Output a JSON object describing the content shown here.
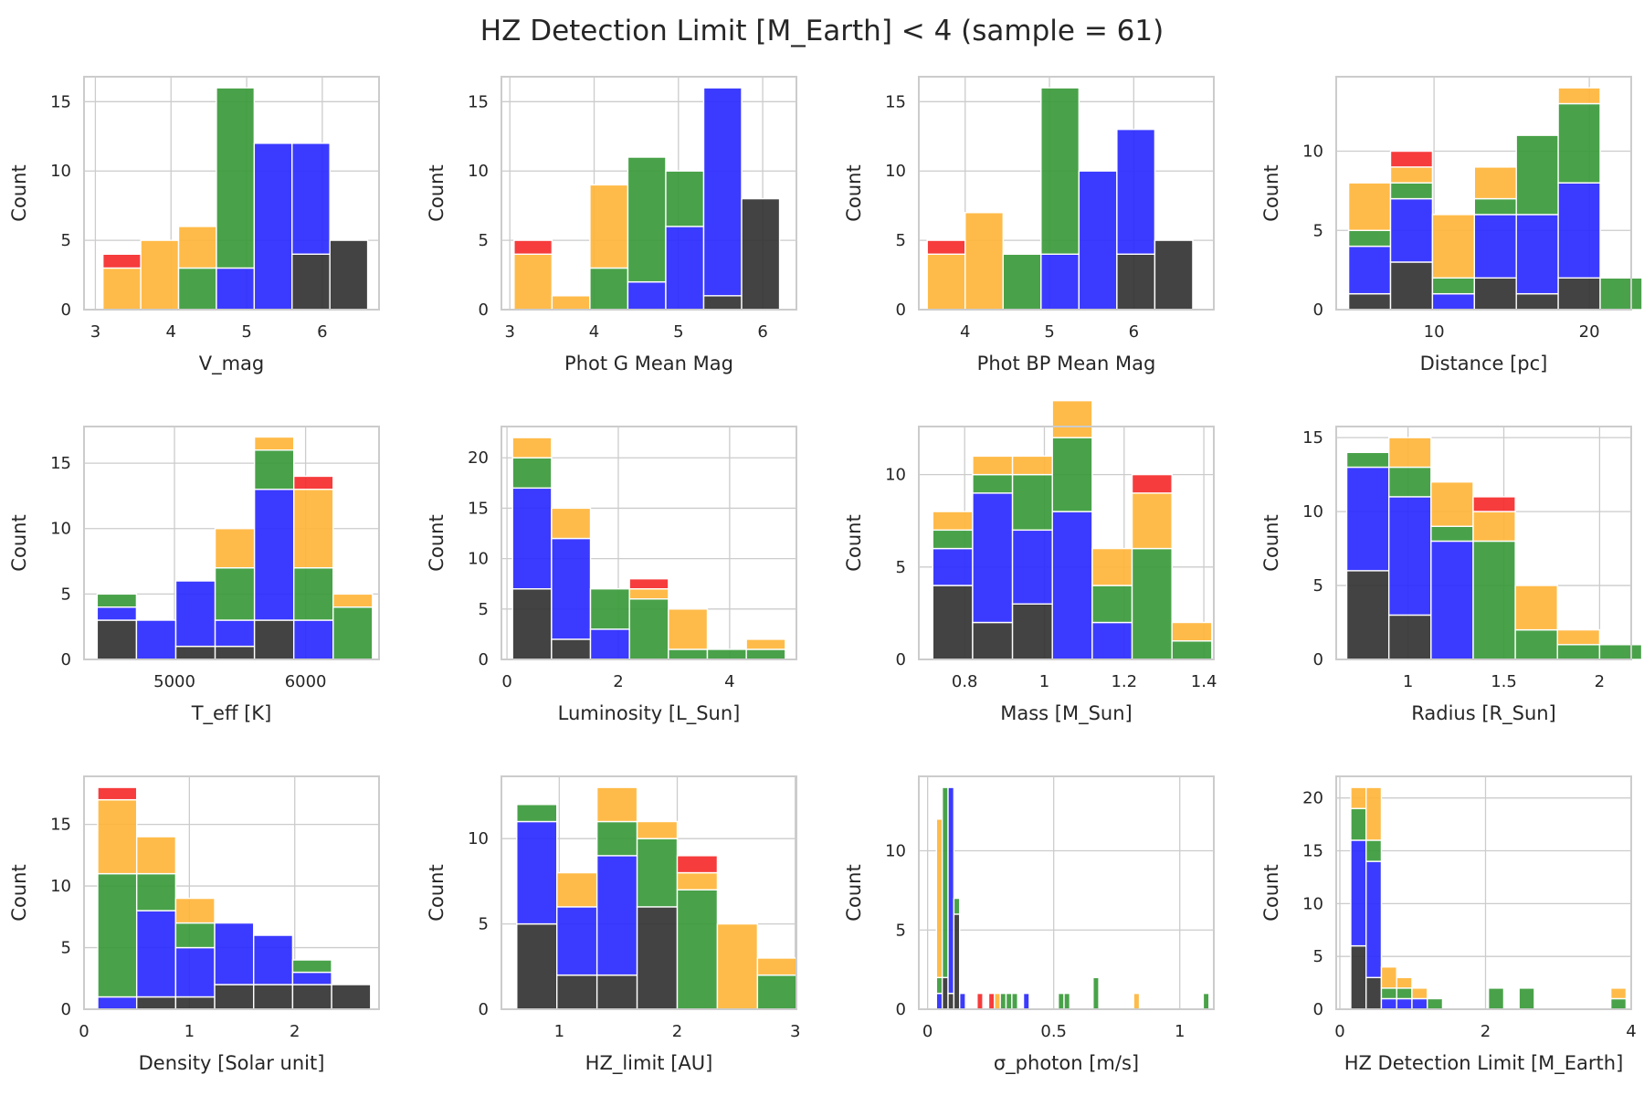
{
  "figure_title": "HZ Detection Limit [M_Earth] < 4 (sample = 61)",
  "colors": {
    "red": "#f52b2b",
    "orange": "#ffb53a",
    "green": "#3a9a3a",
    "blue": "#2a2aff",
    "black": "#333333",
    "grid": "#cccccc",
    "frame": "#cccccc"
  },
  "chart_data": [
    {
      "type": "bar",
      "xlabel": "V_mag",
      "ylabel": "Count",
      "xlim": [
        2.85,
        6.75
      ],
      "ylim": [
        0,
        16.8
      ],
      "xticks": [
        3,
        4,
        5,
        6
      ],
      "yticks": [
        0,
        5,
        10,
        15
      ],
      "bins": [
        3.1,
        3.6,
        4.1,
        4.6,
        5.1,
        5.6,
        6.1,
        6.6
      ],
      "stacks": [
        [
          1,
          3,
          0,
          0,
          0
        ],
        [
          0,
          5,
          0,
          0,
          0
        ],
        [
          0,
          3,
          3,
          0,
          0
        ],
        [
          0,
          0,
          13,
          3,
          0
        ],
        [
          0,
          0,
          0,
          12,
          0
        ],
        [
          0,
          0,
          0,
          8,
          4
        ],
        [
          0,
          0,
          0,
          0,
          5
        ]
      ]
    },
    {
      "type": "bar",
      "xlabel": "Phot G Mean Mag",
      "ylabel": "Count",
      "xlim": [
        2.9,
        6.4
      ],
      "ylim": [
        0,
        16.8
      ],
      "xticks": [
        3,
        4,
        5,
        6
      ],
      "yticks": [
        0,
        5,
        10,
        15
      ],
      "bins": [
        3.05,
        3.5,
        3.95,
        4.4,
        4.85,
        5.3,
        5.75,
        6.2
      ],
      "stacks": [
        [
          1,
          4,
          0,
          0,
          0
        ],
        [
          0,
          1,
          0,
          0,
          0
        ],
        [
          0,
          6,
          3,
          0,
          0
        ],
        [
          0,
          0,
          9,
          2,
          0
        ],
        [
          0,
          0,
          4,
          6,
          0
        ],
        [
          0,
          0,
          0,
          15,
          1
        ],
        [
          0,
          0,
          0,
          0,
          8
        ]
      ]
    },
    {
      "type": "bar",
      "xlabel": "Phot BP Mean Mag",
      "ylabel": "Count",
      "xlim": [
        3.45,
        6.95
      ],
      "ylim": [
        0,
        16.8
      ],
      "xticks": [
        4,
        5,
        6
      ],
      "yticks": [
        0,
        5,
        10,
        15
      ],
      "bins": [
        3.55,
        4.0,
        4.45,
        4.9,
        5.35,
        5.8,
        6.25,
        6.7
      ],
      "stacks": [
        [
          1,
          4,
          0,
          0,
          0
        ],
        [
          0,
          7,
          0,
          0,
          0
        ],
        [
          0,
          0,
          4,
          0,
          0
        ],
        [
          0,
          0,
          12,
          4,
          0
        ],
        [
          0,
          0,
          0,
          10,
          0
        ],
        [
          0,
          0,
          0,
          9,
          4
        ],
        [
          0,
          0,
          0,
          0,
          5
        ]
      ]
    },
    {
      "type": "bar",
      "xlabel": "Distance [pc]",
      "ylabel": "Count",
      "xlim": [
        3.7,
        22.7
      ],
      "ylim": [
        0,
        14.7
      ],
      "xticks": [
        10,
        20
      ],
      "yticks": [
        0,
        5,
        10
      ],
      "bins": [
        4.5,
        7.2,
        9.9,
        12.6,
        15.3,
        18.0,
        20.7,
        23.4
      ],
      "stacks": [
        [
          0,
          3,
          1,
          3,
          1
        ],
        [
          1,
          1,
          1,
          4,
          3
        ],
        [
          0,
          4,
          1,
          1,
          0
        ],
        [
          0,
          2,
          1,
          4,
          2
        ],
        [
          0,
          0,
          5,
          5,
          1
        ],
        [
          0,
          1,
          5,
          6,
          2
        ],
        [
          0,
          0,
          2,
          0,
          0
        ]
      ]
    },
    {
      "type": "bar",
      "xlabel": "T_eff [K]",
      "ylabel": "Count",
      "xlim": [
        4310,
        6560
      ],
      "ylim": [
        0,
        17.8
      ],
      "xticks": [
        5000,
        6000
      ],
      "yticks": [
        0,
        5,
        10,
        15
      ],
      "bins": [
        4410,
        4710,
        5010,
        5310,
        5610,
        5910,
        6210,
        6510
      ],
      "stacks": [
        [
          0,
          0,
          1,
          1,
          3
        ],
        [
          0,
          0,
          0,
          3,
          0
        ],
        [
          0,
          0,
          0,
          5,
          1
        ],
        [
          0,
          3,
          4,
          2,
          1
        ],
        [
          0,
          1,
          3,
          10,
          3
        ],
        [
          1,
          6,
          4,
          3,
          0
        ],
        [
          0,
          1,
          4,
          0,
          0
        ]
      ]
    },
    {
      "type": "bar",
      "xlabel": "Luminosity [L_Sun]",
      "ylabel": "Count",
      "xlim": [
        -0.1,
        5.2
      ],
      "ylim": [
        0,
        23.1
      ],
      "xticks": [
        0,
        2,
        4
      ],
      "yticks": [
        0,
        5,
        10,
        15,
        20
      ],
      "bins": [
        0.1,
        0.8,
        1.5,
        2.2,
        2.9,
        3.6,
        4.3,
        5.0
      ],
      "stacks": [
        [
          0,
          2,
          3,
          10,
          7
        ],
        [
          0,
          3,
          0,
          10,
          2
        ],
        [
          0,
          0,
          4,
          3,
          0
        ],
        [
          1,
          1,
          6,
          0,
          0
        ],
        [
          0,
          4,
          1,
          0,
          0
        ],
        [
          0,
          0,
          1,
          0,
          0
        ],
        [
          0,
          1,
          1,
          0,
          0
        ]
      ]
    },
    {
      "type": "bar",
      "xlabel": "Mass [M_Sun]",
      "ylabel": "Count",
      "xlim": [
        0.685,
        1.425
      ],
      "ylim": [
        0,
        12.6
      ],
      "xticks": [
        0.8,
        1.0,
        1.2,
        1.4
      ],
      "yticks": [
        0,
        5,
        10
      ],
      "bins": [
        0.72,
        0.82,
        0.92,
        1.02,
        1.12,
        1.22,
        1.32,
        1.42
      ],
      "stacks": [
        [
          0,
          1,
          1,
          2,
          4
        ],
        [
          0,
          1,
          1,
          7,
          2
        ],
        [
          0,
          1,
          3,
          4,
          3
        ],
        [
          0,
          2,
          4,
          8,
          0
        ],
        [
          0,
          2,
          2,
          2,
          0
        ],
        [
          1,
          3,
          6,
          0,
          0
        ],
        [
          0,
          1,
          1,
          0,
          0
        ]
      ]
    },
    {
      "type": "bar",
      "xlabel": "Radius [R_Sun]",
      "ylabel": "Count",
      "xlim": [
        0.625,
        2.165
      ],
      "ylim": [
        0,
        15.75
      ],
      "xticks": [
        1.0,
        1.5,
        2.0
      ],
      "yticks": [
        0,
        5,
        10,
        15
      ],
      "bins": [
        0.68,
        0.9,
        1.12,
        1.34,
        1.56,
        1.78,
        2.0,
        2.22
      ],
      "stacks": [
        [
          0,
          0,
          1,
          7,
          6
        ],
        [
          0,
          2,
          2,
          8,
          3
        ],
        [
          0,
          3,
          1,
          8,
          0
        ],
        [
          1,
          2,
          8,
          0,
          0
        ],
        [
          0,
          3,
          2,
          0,
          0
        ],
        [
          0,
          1,
          1,
          0,
          0
        ],
        [
          0,
          0,
          1,
          0,
          0
        ]
      ]
    },
    {
      "type": "bar",
      "xlabel": "Density [Solar unit]",
      "ylabel": "Count",
      "xlim": [
        0.0,
        2.8
      ],
      "ylim": [
        0,
        18.9
      ],
      "xticks": [
        0,
        1,
        2
      ],
      "yticks": [
        0,
        5,
        10,
        15
      ],
      "bins": [
        0.13,
        0.5,
        0.87,
        1.24,
        1.61,
        1.98,
        2.35,
        2.72
      ],
      "stacks": [
        [
          1,
          6,
          10,
          1,
          0
        ],
        [
          0,
          3,
          3,
          7,
          1
        ],
        [
          0,
          2,
          2,
          4,
          1
        ],
        [
          0,
          0,
          0,
          5,
          2
        ],
        [
          0,
          0,
          0,
          4,
          2
        ],
        [
          0,
          0,
          1,
          1,
          2
        ],
        [
          0,
          0,
          0,
          0,
          2
        ]
      ]
    },
    {
      "type": "bar",
      "xlabel": "HZ_limit [AU]",
      "ylabel": "Count",
      "xlim": [
        0.51,
        3.01
      ],
      "ylim": [
        0,
        13.65
      ],
      "xticks": [
        1,
        2,
        3
      ],
      "yticks": [
        0,
        5,
        10
      ],
      "bins": [
        0.64,
        0.98,
        1.32,
        1.66,
        2.0,
        2.34,
        2.68,
        3.02
      ],
      "stacks": [
        [
          0,
          0,
          1,
          6,
          5
        ],
        [
          0,
          2,
          0,
          4,
          2
        ],
        [
          0,
          2,
          2,
          7,
          2
        ],
        [
          0,
          1,
          4,
          0,
          6
        ],
        [
          1,
          1,
          7,
          0,
          0
        ],
        [
          0,
          5,
          0,
          0,
          0
        ],
        [
          0,
          1,
          2,
          0,
          0
        ]
      ]
    },
    {
      "type": "bar",
      "xlabel": "σ_photon [m/s]",
      "ylabel": "Count",
      "xlim": [
        -0.035,
        1.135
      ],
      "ylim": [
        0,
        14.7
      ],
      "xticks": [
        0.0,
        0.5,
        1.0
      ],
      "yticks": [
        0,
        5,
        10
      ],
      "bins": [
        0.035,
        0.058,
        0.081,
        0.104,
        0.127,
        0.15,
        0.173,
        0.196,
        0.219,
        0.242,
        0.265,
        0.288,
        0.311,
        0.334,
        0.357,
        0.38,
        0.403,
        0.426,
        0.449,
        0.472,
        0.495,
        0.518,
        0.541,
        0.564,
        0.587,
        0.61,
        0.633,
        0.656,
        0.679,
        0.702,
        0.725,
        0.748,
        0.771,
        0.794,
        0.817,
        0.84,
        0.863,
        0.886,
        0.909,
        0.932,
        0.955,
        0.978,
        1.001,
        1.024,
        1.047,
        1.07,
        1.093,
        1.116
      ],
      "stacks": [
        [
          0,
          10,
          1,
          1,
          0
        ],
        [
          0,
          0,
          12,
          0,
          2
        ],
        [
          0,
          0,
          0,
          13,
          1
        ],
        [
          0,
          0,
          1,
          0,
          6
        ],
        [
          0,
          0,
          0,
          1,
          0
        ],
        [
          0,
          0,
          0,
          0,
          0
        ],
        [
          0,
          0,
          0,
          0,
          0
        ],
        [
          1,
          0,
          0,
          0,
          0
        ],
        [
          0,
          0,
          0,
          0,
          0
        ],
        [
          1,
          0,
          0,
          0,
          0
        ],
        [
          0,
          1,
          0,
          0,
          0
        ],
        [
          0,
          0,
          1,
          0,
          0
        ],
        [
          0,
          0,
          1,
          0,
          0
        ],
        [
          0,
          0,
          1,
          0,
          0
        ],
        [
          0,
          0,
          0,
          0,
          0
        ],
        [
          0,
          0,
          0,
          1,
          0
        ],
        [
          0,
          0,
          0,
          0,
          0
        ],
        [
          0,
          0,
          0,
          0,
          0
        ],
        [
          0,
          0,
          0,
          0,
          0
        ],
        [
          0,
          0,
          0,
          0,
          0
        ],
        [
          0,
          0,
          0,
          0,
          0
        ],
        [
          0,
          0,
          1,
          0,
          0
        ],
        [
          0,
          0,
          1,
          0,
          0
        ],
        [
          0,
          0,
          0,
          0,
          0
        ],
        [
          0,
          0,
          0,
          0,
          0
        ],
        [
          0,
          0,
          0,
          0,
          0
        ],
        [
          0,
          0,
          0,
          0,
          0
        ],
        [
          0,
          0,
          2,
          0,
          0
        ],
        [
          0,
          0,
          0,
          0,
          0
        ],
        [
          0,
          0,
          0,
          0,
          0
        ],
        [
          0,
          0,
          0,
          0,
          0
        ],
        [
          0,
          0,
          0,
          0,
          0
        ],
        [
          0,
          0,
          0,
          0,
          0
        ],
        [
          0,
          0,
          0,
          0,
          0
        ],
        [
          0,
          1,
          0,
          0,
          0
        ],
        [
          0,
          0,
          0,
          0,
          0
        ],
        [
          0,
          0,
          0,
          0,
          0
        ],
        [
          0,
          0,
          0,
          0,
          0
        ],
        [
          0,
          0,
          0,
          0,
          0
        ],
        [
          0,
          0,
          0,
          0,
          0
        ],
        [
          0,
          0,
          0,
          0,
          0
        ],
        [
          0,
          0,
          0,
          0,
          0
        ],
        [
          0,
          0,
          0,
          0,
          0
        ],
        [
          0,
          0,
          0,
          0,
          0
        ],
        [
          0,
          0,
          0,
          0,
          0
        ],
        [
          0,
          0,
          0,
          0,
          0
        ],
        [
          0,
          0,
          1,
          0,
          0
        ]
      ]
    },
    {
      "type": "bar",
      "xlabel": "HZ Detection Limit [M_Earth]",
      "ylabel": "Count",
      "xlim": [
        -0.05,
        4.0
      ],
      "ylim": [
        0,
        22.05
      ],
      "xticks": [
        0,
        2,
        4
      ],
      "yticks": [
        0,
        5,
        10,
        15,
        20
      ],
      "bins": [
        0.15,
        0.36,
        0.57,
        0.78,
        0.99,
        1.2,
        1.41,
        1.62,
        1.83,
        2.04,
        2.25,
        2.46,
        2.67,
        2.88,
        3.09,
        3.3,
        3.51,
        3.72,
        3.93
      ],
      "stacks": [
        [
          0,
          2,
          3,
          10,
          6
        ],
        [
          0,
          5,
          2,
          11,
          3
        ],
        [
          0,
          2,
          1,
          1,
          0
        ],
        [
          0,
          1,
          1,
          1,
          0
        ],
        [
          0,
          1,
          0,
          1,
          0
        ],
        [
          0,
          0,
          1,
          0,
          0
        ],
        [
          0,
          0,
          0,
          0,
          0
        ],
        [
          0,
          0,
          0,
          0,
          0
        ],
        [
          0,
          0,
          0,
          0,
          0
        ],
        [
          0,
          0,
          2,
          0,
          0
        ],
        [
          0,
          0,
          0,
          0,
          0
        ],
        [
          0,
          0,
          2,
          0,
          0
        ],
        [
          0,
          0,
          0,
          0,
          0
        ],
        [
          0,
          0,
          0,
          0,
          0
        ],
        [
          0,
          0,
          0,
          0,
          0
        ],
        [
          0,
          0,
          0,
          0,
          0
        ],
        [
          0,
          0,
          0,
          0,
          0
        ],
        [
          0,
          1,
          1,
          0,
          0
        ]
      ]
    }
  ]
}
